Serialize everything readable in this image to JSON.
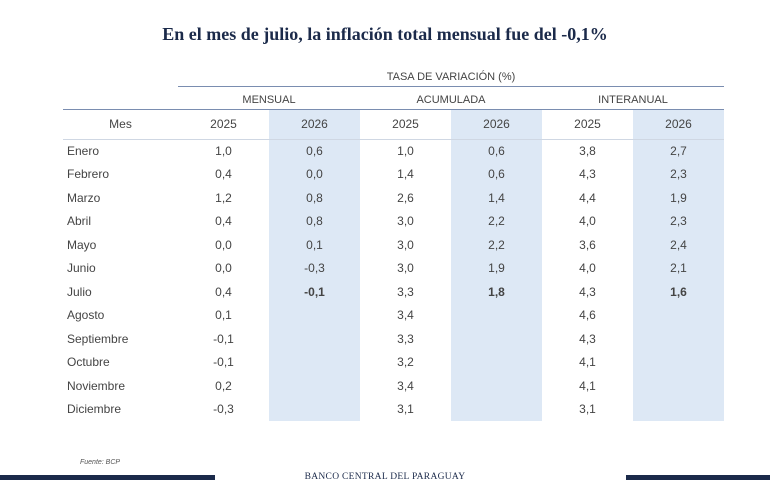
{
  "title": "En el mes de julio, la inflación total mensual fue del -0,1%",
  "table": {
    "super_header": "TASA DE VARIACIÓN (%)",
    "groups": [
      "MENSUAL",
      "ACUMULADA",
      "INTERANUAL"
    ],
    "mes_header": "Mes",
    "years": [
      "2025",
      "2026",
      "2025",
      "2026",
      "2025",
      "2026"
    ],
    "rows": [
      {
        "mes": "Enero",
        "v": [
          "1,0",
          "0,6",
          "1,0",
          "0,6",
          "3,8",
          "2,7"
        ]
      },
      {
        "mes": "Febrero",
        "v": [
          "0,4",
          "0,0",
          "1,4",
          "0,6",
          "4,3",
          "2,3"
        ]
      },
      {
        "mes": "Marzo",
        "v": [
          "1,2",
          "0,8",
          "2,6",
          "1,4",
          "4,4",
          "1,9"
        ]
      },
      {
        "mes": "Abril",
        "v": [
          "0,4",
          "0,8",
          "3,0",
          "2,2",
          "4,0",
          "2,3"
        ]
      },
      {
        "mes": "Mayo",
        "v": [
          "0,0",
          "0,1",
          "3,0",
          "2,2",
          "3,6",
          "2,4"
        ]
      },
      {
        "mes": "Junio",
        "v": [
          "0,0",
          "-0,3",
          "3,0",
          "1,9",
          "4,0",
          "2,1"
        ]
      },
      {
        "mes": "Julio",
        "v": [
          "0,4",
          "-0,1",
          "3,3",
          "1,8",
          "4,3",
          "1,6"
        ]
      },
      {
        "mes": "Agosto",
        "v": [
          "0,1",
          "",
          "3,4",
          "",
          "4,6",
          ""
        ]
      },
      {
        "mes": "Septiembre",
        "v": [
          "-0,1",
          "",
          "3,3",
          "",
          "4,3",
          ""
        ]
      },
      {
        "mes": "Octubre",
        "v": [
          "-0,1",
          "",
          "3,2",
          "",
          "4,1",
          ""
        ]
      },
      {
        "mes": "Noviembre",
        "v": [
          "0,2",
          "",
          "3,4",
          "",
          "4,1",
          ""
        ]
      },
      {
        "mes": "Diciembre",
        "v": [
          "-0,3",
          "",
          "3,1",
          "",
          "3,1",
          ""
        ]
      }
    ]
  },
  "source": "Fuente: BCP",
  "footer": "BANCO CENTRAL DEL PARAGUAY",
  "colors": {
    "navy": "#1b2a4a",
    "shade": "#dde8f5",
    "rule": "#7a8db0"
  }
}
